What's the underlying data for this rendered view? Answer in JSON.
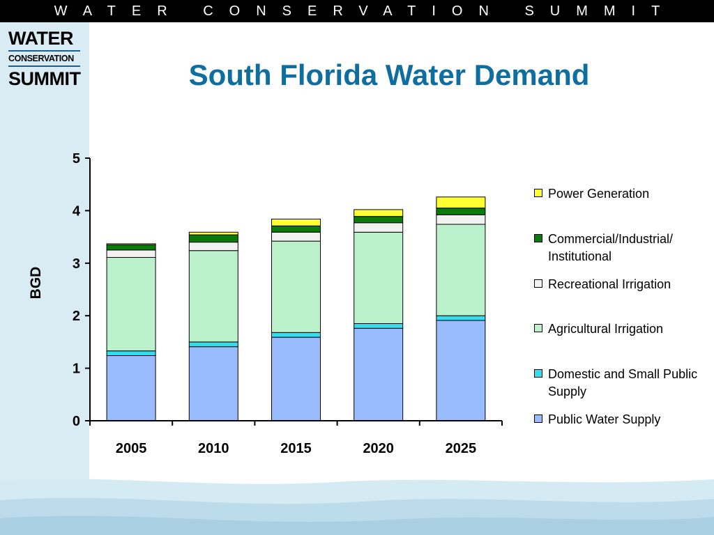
{
  "header": {
    "banner": "WATER CONSERVATION SUMMIT"
  },
  "logo": {
    "line1": "WATER",
    "line2": "CONSERVATION",
    "line3": "SUMMIT"
  },
  "chart_data": {
    "type": "bar",
    "stacked": true,
    "title": "South Florida Water Demand",
    "ylabel": "BGD",
    "xlabel": "",
    "ylim": [
      0,
      5
    ],
    "yticks": [
      0,
      1,
      2,
      3,
      4,
      5
    ],
    "grid": false,
    "legend_position": "right",
    "categories": [
      "2005",
      "2010",
      "2015",
      "2020",
      "2025"
    ],
    "series": [
      {
        "name": "Public Water Supply",
        "color": "#99bbff",
        "values": [
          1.24,
          1.41,
          1.59,
          1.76,
          1.91
        ]
      },
      {
        "name": "Domestic and Small Public Supply",
        "color": "#33ddee",
        "values": [
          0.09,
          0.09,
          0.09,
          0.09,
          0.09
        ]
      },
      {
        "name": "Agricultural Irrigation",
        "color": "#bbf2cc",
        "values": [
          1.78,
          1.74,
          1.74,
          1.74,
          1.74
        ]
      },
      {
        "name": "Recreational Irrigation",
        "color": "#f2f2f2",
        "values": [
          0.14,
          0.16,
          0.17,
          0.18,
          0.18
        ]
      },
      {
        "name": "Commercial/Industrial/ Institutional",
        "color": "#0a7a0a",
        "values": [
          0.1,
          0.14,
          0.12,
          0.12,
          0.13
        ]
      },
      {
        "name": "Power Generation",
        "color": "#ffff33",
        "values": [
          0.02,
          0.05,
          0.13,
          0.13,
          0.21
        ]
      }
    ]
  }
}
